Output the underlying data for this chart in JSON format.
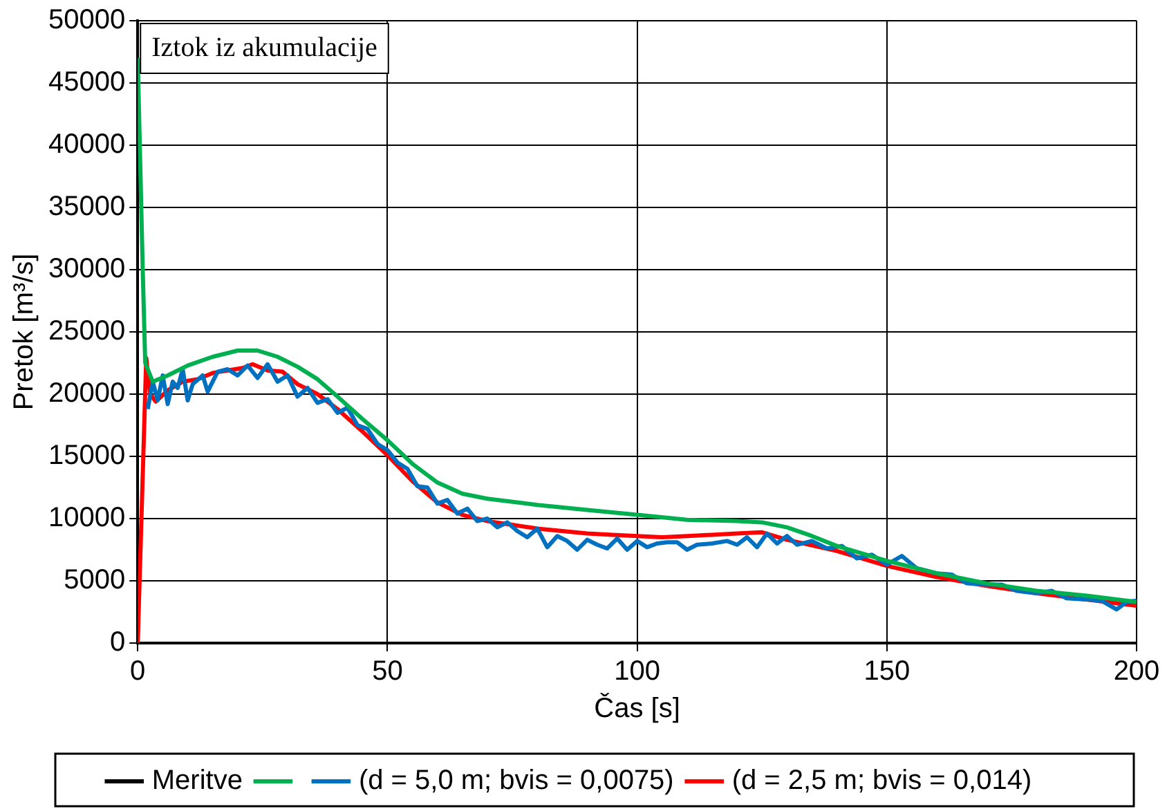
{
  "chart_data": {
    "type": "line",
    "xlabel": "Čas [s]",
    "ylabel": "Pretok [m³/s]",
    "annotations": [
      "Iztok iz akumulacije"
    ],
    "xlim": [
      0,
      200
    ],
    "xticks": [
      0,
      50,
      100,
      150,
      200
    ],
    "ylim": [
      0,
      50000
    ],
    "yticks": [
      0,
      5000,
      10000,
      15000,
      20000,
      25000,
      30000,
      35000,
      40000,
      45000,
      50000
    ],
    "grid": true,
    "legend": "bottom",
    "marker": "none",
    "line_style": "solid",
    "series": [
      {
        "name": "Meritve",
        "color": "#000000"
      },
      {
        "color": "#00b050",
        "x": [
          0,
          1,
          1.5,
          3,
          6,
          10,
          15,
          20,
          24,
          28,
          32,
          36,
          40,
          45,
          50,
          55,
          60,
          65,
          70,
          80,
          90,
          100,
          110,
          120,
          125,
          130,
          135,
          140,
          150,
          160,
          170,
          180,
          190,
          200
        ],
        "values": [
          47000,
          30000,
          22500,
          21000,
          21500,
          22300,
          23000,
          23500,
          23500,
          23000,
          22200,
          21200,
          19800,
          18000,
          16300,
          14400,
          12900,
          12000,
          11600,
          11100,
          10700,
          10300,
          9900,
          9800,
          9700,
          9300,
          8600,
          7800,
          6600,
          5600,
          4800,
          4200,
          3800,
          3300
        ]
      },
      {
        "name": "(d = 5,0 m; bvis = 0,0075)",
        "color": "#0070c0",
        "x": [
          2,
          3,
          4,
          5,
          6,
          7,
          8,
          9,
          10,
          11,
          13,
          14,
          16,
          18,
          20,
          22,
          24,
          26,
          28,
          30,
          32,
          34,
          36,
          38,
          40,
          42,
          44,
          46,
          48,
          50,
          52,
          54,
          56,
          58,
          60,
          62,
          64,
          66,
          68,
          70,
          72,
          74,
          76,
          78,
          80,
          82,
          84,
          86,
          88,
          90,
          92,
          94,
          96,
          98,
          100,
          102,
          104,
          106,
          108,
          110,
          112,
          115,
          118,
          120,
          122,
          124,
          126,
          128,
          130,
          132,
          135,
          138,
          141,
          144,
          147,
          150,
          153,
          156,
          160,
          163,
          166,
          170,
          173,
          176,
          180,
          183,
          186,
          190,
          193,
          196,
          198,
          200
        ],
        "values": [
          18800,
          21000,
          19500,
          21500,
          19200,
          21000,
          20500,
          22000,
          19500,
          20800,
          21500,
          20200,
          21800,
          22000,
          21500,
          22300,
          21300,
          22400,
          21000,
          21500,
          19800,
          20500,
          19300,
          19600,
          18500,
          18900,
          17500,
          17200,
          16000,
          15500,
          14500,
          14000,
          12600,
          12500,
          11200,
          11500,
          10400,
          10800,
          9800,
          10000,
          9300,
          9700,
          9000,
          8500,
          9200,
          7700,
          8600,
          8200,
          7500,
          8300,
          7900,
          7600,
          8400,
          7500,
          8200,
          7700,
          8000,
          8100,
          8100,
          7500,
          7900,
          8000,
          8200,
          7900,
          8500,
          7700,
          8800,
          8000,
          8600,
          7900,
          8200,
          7600,
          7800,
          6800,
          7100,
          6300,
          7000,
          6000,
          5600,
          5500,
          4800,
          4700,
          4700,
          4200,
          4000,
          4200,
          3600,
          3500,
          3400,
          2700,
          3300,
          3400
        ]
      },
      {
        "name": "(d = 2,5 m; bvis = 0,014)",
        "color": "#ff0000",
        "x": [
          0,
          1.7,
          2.5,
          3.6,
          6,
          9,
          12,
          15,
          18,
          21,
          23,
          26,
          29,
          32,
          36,
          40,
          45,
          50,
          55,
          60,
          65,
          70,
          75,
          80,
          85,
          90,
          95,
          100,
          105,
          110,
          115,
          120,
          125,
          130,
          140,
          150,
          160,
          170,
          180,
          190,
          200
        ],
        "values": [
          0,
          22900,
          20000,
          19400,
          20300,
          21000,
          21200,
          21700,
          21900,
          22100,
          22400,
          21900,
          21800,
          20800,
          20000,
          18800,
          17000,
          15100,
          13000,
          11300,
          10300,
          9800,
          9500,
          9200,
          9000,
          8800,
          8700,
          8600,
          8500,
          8600,
          8700,
          8800,
          8900,
          8300,
          7400,
          6200,
          5300,
          4600,
          4000,
          3500,
          3000
        ]
      }
    ]
  }
}
